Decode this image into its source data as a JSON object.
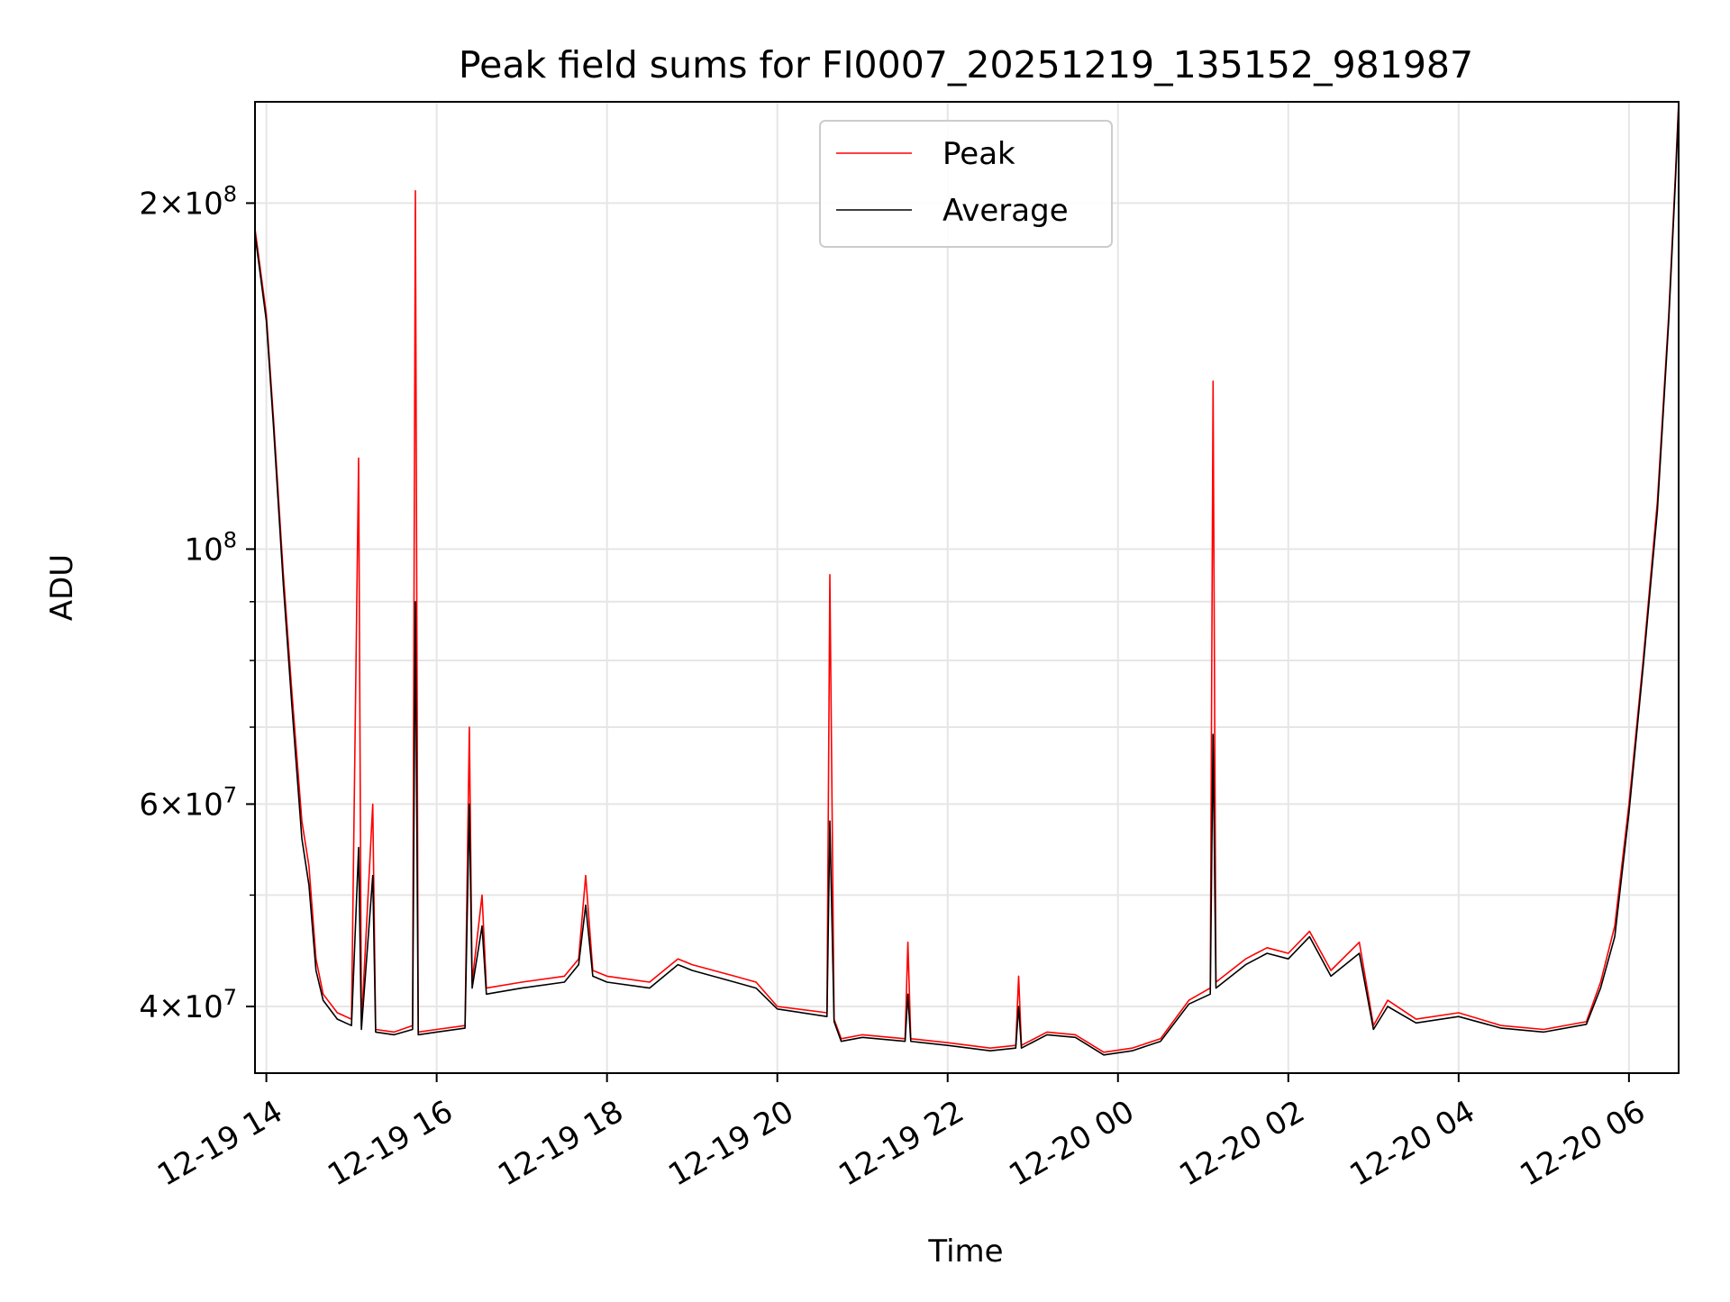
{
  "chart_data": {
    "type": "line",
    "title": "Peak field sums for FI0007_20251219_135152_981987",
    "xlabel": "Time",
    "ylabel": "ADU",
    "yscale": "log",
    "ylim": [
      35000000,
      245000000
    ],
    "xlim": [
      "2025-12-19 13:52",
      "2025-12-20 06:35"
    ],
    "grid": true,
    "legend_position": "top-center",
    "x_ticks": [
      {
        "t": "2025-12-19 14:00",
        "label": "12-19 14"
      },
      {
        "t": "2025-12-19 16:00",
        "label": "12-19 16"
      },
      {
        "t": "2025-12-19 18:00",
        "label": "12-19 18"
      },
      {
        "t": "2025-12-19 20:00",
        "label": "12-19 20"
      },
      {
        "t": "2025-12-19 22:00",
        "label": "12-19 22"
      },
      {
        "t": "2025-12-20 00:00",
        "label": "12-20 00"
      },
      {
        "t": "2025-12-20 02:00",
        "label": "12-20 02"
      },
      {
        "t": "2025-12-20 04:00",
        "label": "12-20 04"
      },
      {
        "t": "2025-12-20 06:00",
        "label": "12-20 06"
      }
    ],
    "y_ticks": [
      {
        "v": 40000000,
        "mant": "4",
        "exp": "7"
      },
      {
        "v": 60000000,
        "mant": "6",
        "exp": "7"
      },
      {
        "v": 100000000,
        "mant": "",
        "exp": "8"
      },
      {
        "v": 200000000,
        "mant": "2",
        "exp": "8"
      }
    ],
    "y_minor_ticks": [
      50000000,
      70000000,
      80000000,
      90000000
    ],
    "series": [
      {
        "name": "Peak",
        "color": "#ff0000",
        "points": [
          [
            "2025-12-19 13:52",
            190000000
          ],
          [
            "2025-12-19 14:00",
            160000000
          ],
          [
            "2025-12-19 14:05",
            130000000
          ],
          [
            "2025-12-19 14:12",
            95000000
          ],
          [
            "2025-12-19 14:18",
            75000000
          ],
          [
            "2025-12-19 14:25",
            58000000
          ],
          [
            "2025-12-19 14:30",
            53000000
          ],
          [
            "2025-12-19 14:35",
            44000000
          ],
          [
            "2025-12-19 14:40",
            41000000
          ],
          [
            "2025-12-19 14:50",
            39500000
          ],
          [
            "2025-12-19 15:00",
            39000000
          ],
          [
            "2025-12-19 15:05",
            120000000
          ],
          [
            "2025-12-19 15:07",
            38500000
          ],
          [
            "2025-12-19 15:15",
            60000000
          ],
          [
            "2025-12-19 15:17",
            38200000
          ],
          [
            "2025-12-19 15:30",
            38000000
          ],
          [
            "2025-12-19 15:43",
            38500000
          ],
          [
            "2025-12-19 15:45",
            205000000
          ],
          [
            "2025-12-19 15:47",
            38000000
          ],
          [
            "2025-12-19 16:00",
            38200000
          ],
          [
            "2025-12-19 16:20",
            38500000
          ],
          [
            "2025-12-19 16:23",
            70000000
          ],
          [
            "2025-12-19 16:25",
            42000000
          ],
          [
            "2025-12-19 16:32",
            50000000
          ],
          [
            "2025-12-19 16:35",
            41500000
          ],
          [
            "2025-12-19 17:00",
            42000000
          ],
          [
            "2025-12-19 17:30",
            42500000
          ],
          [
            "2025-12-19 17:40",
            44000000
          ],
          [
            "2025-12-19 17:45",
            52000000
          ],
          [
            "2025-12-19 17:50",
            43000000
          ],
          [
            "2025-12-19 18:00",
            42500000
          ],
          [
            "2025-12-19 18:30",
            42000000
          ],
          [
            "2025-12-19 18:50",
            44000000
          ],
          [
            "2025-12-19 19:00",
            43500000
          ],
          [
            "2025-12-19 19:30",
            42500000
          ],
          [
            "2025-12-19 19:45",
            42000000
          ],
          [
            "2025-12-19 20:00",
            40000000
          ],
          [
            "2025-12-19 20:35",
            39500000
          ],
          [
            "2025-12-19 20:37",
            95000000
          ],
          [
            "2025-12-19 20:40",
            39000000
          ],
          [
            "2025-12-19 20:45",
            37500000
          ],
          [
            "2025-12-19 21:00",
            37800000
          ],
          [
            "2025-12-19 21:30",
            37500000
          ],
          [
            "2025-12-19 21:32",
            45500000
          ],
          [
            "2025-12-19 21:34",
            37500000
          ],
          [
            "2025-12-19 22:00",
            37200000
          ],
          [
            "2025-12-19 22:30",
            36800000
          ],
          [
            "2025-12-19 22:48",
            37000000
          ],
          [
            "2025-12-19 22:50",
            42500000
          ],
          [
            "2025-12-19 22:52",
            37000000
          ],
          [
            "2025-12-19 23:10",
            38000000
          ],
          [
            "2025-12-19 23:30",
            37800000
          ],
          [
            "2025-12-19 23:50",
            36500000
          ],
          [
            "2025-12-20 00:10",
            36800000
          ],
          [
            "2025-12-20 00:30",
            37500000
          ],
          [
            "2025-12-20 00:50",
            40500000
          ],
          [
            "2025-12-20 01:05",
            41500000
          ],
          [
            "2025-12-20 01:07",
            140000000
          ],
          [
            "2025-12-20 01:09",
            42000000
          ],
          [
            "2025-12-20 01:30",
            44000000
          ],
          [
            "2025-12-20 01:45",
            45000000
          ],
          [
            "2025-12-20 02:00",
            44500000
          ],
          [
            "2025-12-20 02:15",
            46500000
          ],
          [
            "2025-12-20 02:30",
            43000000
          ],
          [
            "2025-12-20 02:50",
            45500000
          ],
          [
            "2025-12-20 03:00",
            38500000
          ],
          [
            "2025-12-20 03:10",
            40500000
          ],
          [
            "2025-12-20 03:30",
            39000000
          ],
          [
            "2025-12-20 04:00",
            39500000
          ],
          [
            "2025-12-20 04:30",
            38500000
          ],
          [
            "2025-12-20 05:00",
            38200000
          ],
          [
            "2025-12-20 05:30",
            38800000
          ],
          [
            "2025-12-20 05:40",
            42000000
          ],
          [
            "2025-12-20 05:50",
            47000000
          ],
          [
            "2025-12-20 06:00",
            60000000
          ],
          [
            "2025-12-20 06:10",
            80000000
          ],
          [
            "2025-12-20 06:20",
            110000000
          ],
          [
            "2025-12-20 06:28",
            160000000
          ],
          [
            "2025-12-20 06:33",
            215000000
          ],
          [
            "2025-12-20 06:35",
            245000000
          ]
        ]
      },
      {
        "name": "Average",
        "color": "#000000",
        "points": [
          [
            "2025-12-19 13:52",
            188000000
          ],
          [
            "2025-12-19 14:00",
            158000000
          ],
          [
            "2025-12-19 14:05",
            128000000
          ],
          [
            "2025-12-19 14:12",
            93000000
          ],
          [
            "2025-12-19 14:18",
            73000000
          ],
          [
            "2025-12-19 14:25",
            56000000
          ],
          [
            "2025-12-19 14:30",
            51000000
          ],
          [
            "2025-12-19 14:35",
            43000000
          ],
          [
            "2025-12-19 14:40",
            40500000
          ],
          [
            "2025-12-19 14:50",
            39000000
          ],
          [
            "2025-12-19 15:00",
            38500000
          ],
          [
            "2025-12-19 15:05",
            55000000
          ],
          [
            "2025-12-19 15:07",
            38200000
          ],
          [
            "2025-12-19 15:15",
            52000000
          ],
          [
            "2025-12-19 15:17",
            38000000
          ],
          [
            "2025-12-19 15:30",
            37800000
          ],
          [
            "2025-12-19 15:43",
            38200000
          ],
          [
            "2025-12-19 15:45",
            90000000
          ],
          [
            "2025-12-19 15:47",
            37800000
          ],
          [
            "2025-12-19 16:00",
            38000000
          ],
          [
            "2025-12-19 16:20",
            38300000
          ],
          [
            "2025-12-19 16:23",
            60000000
          ],
          [
            "2025-12-19 16:25",
            41500000
          ],
          [
            "2025-12-19 16:32",
            47000000
          ],
          [
            "2025-12-19 16:35",
            41000000
          ],
          [
            "2025-12-19 17:00",
            41500000
          ],
          [
            "2025-12-19 17:30",
            42000000
          ],
          [
            "2025-12-19 17:40",
            43500000
          ],
          [
            "2025-12-19 17:45",
            49000000
          ],
          [
            "2025-12-19 17:50",
            42500000
          ],
          [
            "2025-12-19 18:00",
            42000000
          ],
          [
            "2025-12-19 18:30",
            41500000
          ],
          [
            "2025-12-19 18:50",
            43500000
          ],
          [
            "2025-12-19 19:00",
            43000000
          ],
          [
            "2025-12-19 19:30",
            42000000
          ],
          [
            "2025-12-19 19:45",
            41500000
          ],
          [
            "2025-12-19 20:00",
            39800000
          ],
          [
            "2025-12-19 20:35",
            39200000
          ],
          [
            "2025-12-19 20:37",
            58000000
          ],
          [
            "2025-12-19 20:40",
            38800000
          ],
          [
            "2025-12-19 20:45",
            37300000
          ],
          [
            "2025-12-19 21:00",
            37600000
          ],
          [
            "2025-12-19 21:30",
            37300000
          ],
          [
            "2025-12-19 21:32",
            41000000
          ],
          [
            "2025-12-19 21:34",
            37300000
          ],
          [
            "2025-12-19 22:00",
            37000000
          ],
          [
            "2025-12-19 22:30",
            36600000
          ],
          [
            "2025-12-19 22:48",
            36800000
          ],
          [
            "2025-12-19 22:50",
            40000000
          ],
          [
            "2025-12-19 22:52",
            36800000
          ],
          [
            "2025-12-19 23:10",
            37800000
          ],
          [
            "2025-12-19 23:30",
            37600000
          ],
          [
            "2025-12-19 23:50",
            36300000
          ],
          [
            "2025-12-20 00:10",
            36600000
          ],
          [
            "2025-12-20 00:30",
            37300000
          ],
          [
            "2025-12-20 00:50",
            40200000
          ],
          [
            "2025-12-20 01:05",
            41000000
          ],
          [
            "2025-12-20 01:07",
            69000000
          ],
          [
            "2025-12-20 01:09",
            41500000
          ],
          [
            "2025-12-20 01:30",
            43500000
          ],
          [
            "2025-12-20 01:45",
            44500000
          ],
          [
            "2025-12-20 02:00",
            44000000
          ],
          [
            "2025-12-20 02:15",
            46000000
          ],
          [
            "2025-12-20 02:30",
            42500000
          ],
          [
            "2025-12-20 02:50",
            44500000
          ],
          [
            "2025-12-20 03:00",
            38200000
          ],
          [
            "2025-12-20 03:10",
            40000000
          ],
          [
            "2025-12-20 03:30",
            38700000
          ],
          [
            "2025-12-20 04:00",
            39200000
          ],
          [
            "2025-12-20 04:30",
            38300000
          ],
          [
            "2025-12-20 05:00",
            38000000
          ],
          [
            "2025-12-20 05:30",
            38600000
          ],
          [
            "2025-12-20 05:40",
            41500000
          ],
          [
            "2025-12-20 05:50",
            46000000
          ],
          [
            "2025-12-20 06:00",
            59000000
          ],
          [
            "2025-12-20 06:10",
            79000000
          ],
          [
            "2025-12-20 06:20",
            108000000
          ],
          [
            "2025-12-20 06:28",
            158000000
          ],
          [
            "2025-12-20 06:33",
            212000000
          ],
          [
            "2025-12-20 06:35",
            243000000
          ]
        ]
      }
    ]
  }
}
